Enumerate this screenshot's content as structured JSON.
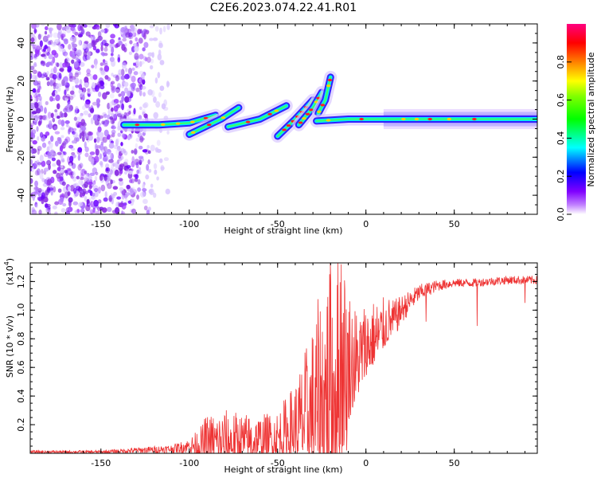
{
  "figure_title": "C2E6.2023.074.22.41.R01",
  "chart_data": [
    {
      "type": "heatmap",
      "name": "spectrogram",
      "xlabel": "Height of straight line (km)",
      "ylabel": "Frequency (Hz)",
      "xlim": [
        -190,
        97
      ],
      "ylim": [
        -50,
        50
      ],
      "xticks": [
        -150,
        -100,
        -50,
        0,
        50
      ],
      "xtick_labels": [
        "-150",
        "-100",
        "-50",
        "0",
        "50"
      ],
      "yticks": [
        -40,
        -20,
        0,
        20,
        40
      ],
      "ytick_labels": [
        "-40",
        "-20",
        "0",
        "20",
        "40"
      ],
      "colorbar": {
        "label": "Normalized spectral amplitude",
        "range": [
          0,
          1
        ],
        "ticks": [
          0.0,
          0.2,
          0.4,
          0.6,
          0.8
        ],
        "tick_labels": [
          "0.0",
          "0.2",
          "0.4",
          "0.6",
          "0.8"
        ],
        "colormap": [
          "#ffffff",
          "#8000ff",
          "#0000ff",
          "#00ffff",
          "#00ff00",
          "#ffff00",
          "#ff8000",
          "#ff0000",
          "#ff0080"
        ]
      },
      "noise_region": {
        "x_range": [
          -190,
          -135
        ],
        "f_range": [
          -50,
          50
        ],
        "amplitude": 0.15
      },
      "ridge_segments": [
        {
          "x": [
            -137,
            -117,
            -100,
            -85
          ],
          "f": [
            -3,
            -3,
            -2,
            2
          ]
        },
        {
          "x": [
            -100,
            -82,
            -72
          ],
          "f": [
            -8,
            0,
            6
          ]
        },
        {
          "x": [
            -78,
            -60,
            -45
          ],
          "f": [
            -4,
            0,
            7
          ]
        },
        {
          "x": [
            -50,
            -40,
            -30
          ],
          "f": [
            -9,
            0,
            10
          ]
        },
        {
          "x": [
            -38,
            -30,
            -25
          ],
          "f": [
            -3,
            6,
            14
          ]
        },
        {
          "x": [
            -27,
            -23,
            -20
          ],
          "f": [
            3,
            10,
            22
          ]
        },
        {
          "x": [
            -28,
            -10,
            10,
            40,
            97
          ],
          "f": [
            -1,
            0,
            0,
            0,
            0
          ]
        }
      ]
    },
    {
      "type": "line",
      "name": "snr",
      "xlabel": "Height of straight line (km)",
      "ylabel": "SNR (10 * v/v)",
      "y_multiplier_prefix": "(x10",
      "y_multiplier_exponent": "4",
      "y_multiplier_suffix": ")",
      "xlim": [
        -190,
        97
      ],
      "ylim": [
        0,
        1.33
      ],
      "xticks": [
        -150,
        -100,
        -50,
        0,
        50
      ],
      "xtick_labels": [
        "-150",
        "-100",
        "-50",
        "0",
        "50"
      ],
      "yticks": [
        0.2,
        0.4,
        0.6,
        0.8,
        1.0,
        1.2
      ],
      "ytick_labels": [
        "0.2",
        "0.4",
        "0.6",
        "0.8",
        "1.0",
        "1.2"
      ],
      "line_color": "#ee3333",
      "envelope": {
        "x": [
          -190,
          -150,
          -130,
          -110,
          -100,
          -90,
          -80,
          -70,
          -60,
          -50,
          -40,
          -30,
          -25,
          -20,
          -15,
          -10,
          -5,
          0,
          5,
          10,
          15,
          20,
          25,
          30,
          40,
          50,
          60,
          70,
          80,
          90,
          97
        ],
        "base": [
          0.01,
          0.01,
          0.02,
          0.03,
          0.05,
          0.06,
          0.07,
          0.07,
          0.08,
          0.1,
          0.15,
          0.25,
          0.3,
          0.38,
          0.45,
          0.55,
          0.6,
          0.72,
          0.78,
          0.85,
          0.92,
          1.0,
          1.06,
          1.12,
          1.17,
          1.19,
          1.19,
          1.2,
          1.21,
          1.21,
          1.21
        ],
        "spread": [
          0.01,
          0.01,
          0.02,
          0.03,
          0.05,
          0.18,
          0.2,
          0.18,
          0.16,
          0.17,
          0.3,
          0.55,
          0.75,
          0.85,
          0.95,
          0.55,
          0.35,
          0.3,
          0.25,
          0.2,
          0.15,
          0.1,
          0.08,
          0.06,
          0.04,
          0.03,
          0.03,
          0.03,
          0.03,
          0.03,
          0.03
        ]
      },
      "spikes": [
        {
          "x": -14,
          "y": 1.32
        },
        {
          "x": -20,
          "y": 1.2
        },
        {
          "x": -19,
          "y": 0.0
        },
        {
          "x": -11,
          "y": 0.02
        },
        {
          "x": 34,
          "y": 0.92
        },
        {
          "x": 63,
          "y": 0.89
        },
        {
          "x": 90,
          "y": 1.05
        }
      ]
    }
  ]
}
